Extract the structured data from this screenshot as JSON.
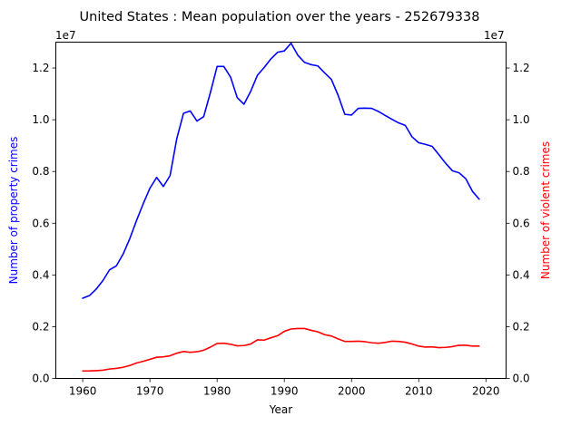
{
  "chart_data": {
    "type": "line",
    "title": "United States : Mean population over the years - 252679338",
    "xlabel": "Year",
    "ylabel_left": "Number of property crimes",
    "ylabel_right": "Number of violent crimes",
    "left_offset_label": "1e7",
    "right_offset_label": "1e7",
    "xlim": [
      1956,
      2023
    ],
    "ylim_left": [
      0,
      13000000
    ],
    "ylim_right": [
      0,
      13000000
    ],
    "x_ticks": [
      1960,
      1970,
      1980,
      1990,
      2000,
      2010,
      2020
    ],
    "y_ticks": [
      0,
      2000000,
      4000000,
      6000000,
      8000000,
      10000000,
      12000000
    ],
    "y_tick_labels": [
      "0.0",
      "0.2",
      "0.4",
      "0.6",
      "0.8",
      "1.0",
      "1.2"
    ],
    "x": [
      1960,
      1961,
      1962,
      1963,
      1964,
      1965,
      1966,
      1967,
      1968,
      1969,
      1970,
      1971,
      1972,
      1973,
      1974,
      1975,
      1976,
      1977,
      1978,
      1979,
      1980,
      1981,
      1982,
      1983,
      1984,
      1985,
      1986,
      1987,
      1988,
      1989,
      1990,
      1991,
      1992,
      1993,
      1994,
      1995,
      1996,
      1997,
      1998,
      1999,
      2000,
      2001,
      2002,
      2003,
      2004,
      2005,
      2006,
      2007,
      2008,
      2009,
      2010,
      2011,
      2012,
      2013,
      2014,
      2015,
      2016,
      2017,
      2018,
      2019
    ],
    "series": [
      {
        "name": "Number of property crimes",
        "axis": "left",
        "color": "#0000ff",
        "values": [
          3100000,
          3200000,
          3450000,
          3780000,
          4200000,
          4350000,
          4800000,
          5400000,
          6100000,
          6750000,
          7350000,
          7770000,
          7420000,
          7840000,
          9270000,
          10250000,
          10340000,
          9950000,
          10120000,
          11050000,
          12060000,
          12060000,
          11650000,
          10850000,
          10600000,
          11100000,
          11720000,
          12020000,
          12350000,
          12610000,
          12660000,
          12960000,
          12500000,
          12220000,
          12130000,
          12080000,
          11810000,
          11560000,
          10950000,
          10210000,
          10180000,
          10440000,
          10450000,
          10440000,
          10320000,
          10170000,
          10020000,
          9880000,
          9780000,
          9340000,
          9110000,
          9050000,
          8970000,
          8650000,
          8320000,
          8030000,
          7950000,
          7720000,
          7230000,
          6930000
        ]
      },
      {
        "name": "Number of violent crimes",
        "axis": "right",
        "color": "#ff0000",
        "values": [
          288000,
          290000,
          301000,
          317000,
          364000,
          387000,
          430000,
          500000,
          595000,
          662000,
          738000,
          817000,
          834000,
          875000,
          975000,
          1040000,
          1010000,
          1030000,
          1090000,
          1210000,
          1350000,
          1360000,
          1320000,
          1260000,
          1270000,
          1330000,
          1490000,
          1480000,
          1570000,
          1650000,
          1820000,
          1910000,
          1930000,
          1930000,
          1860000,
          1800000,
          1690000,
          1640000,
          1530000,
          1430000,
          1430000,
          1440000,
          1420000,
          1380000,
          1360000,
          1390000,
          1440000,
          1430000,
          1400000,
          1330000,
          1250000,
          1210000,
          1220000,
          1190000,
          1200000,
          1230000,
          1280000,
          1280000,
          1250000,
          1250000
        ]
      }
    ],
    "grid": false,
    "legend": "none"
  }
}
